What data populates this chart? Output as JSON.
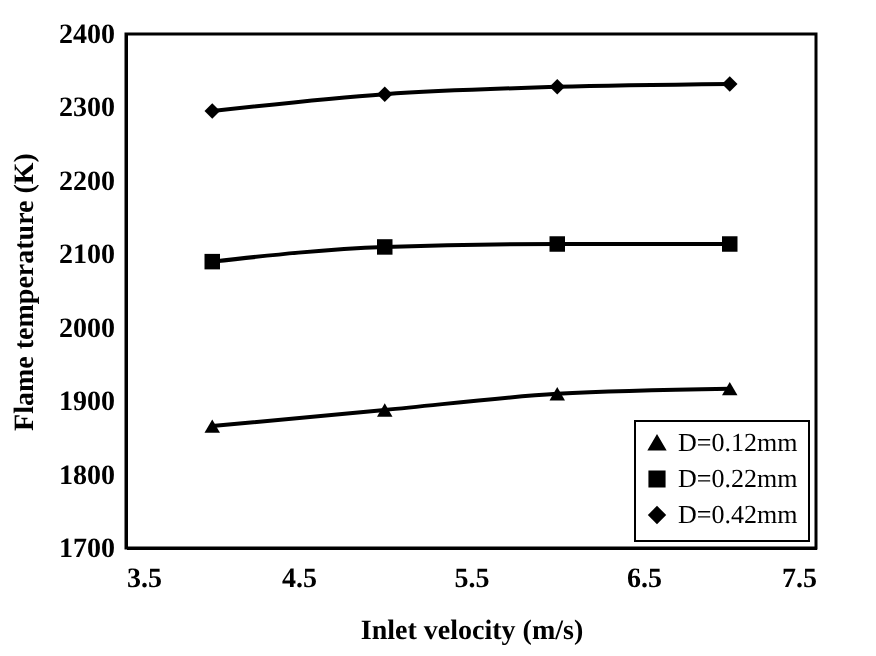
{
  "chart_data": {
    "type": "line",
    "xlabel": "Inlet velocity (m/s)",
    "ylabel": "Flame temperature (K)",
    "x": [
      4,
      5,
      6,
      7
    ],
    "series": [
      {
        "name": "D=0.12mm",
        "color": "#000000",
        "marker": "triangle",
        "values": [
          1866,
          1888,
          1910,
          1917
        ]
      },
      {
        "name": "D=0.22mm",
        "color": "#000000",
        "marker": "square",
        "values": [
          2090,
          2110,
          2114,
          2114
        ]
      },
      {
        "name": "D=0.42mm",
        "color": "#000000",
        "marker": "diamond",
        "values": [
          2295,
          2318,
          2328,
          2332
        ]
      }
    ],
    "xlim": [
      3.5,
      7.5
    ],
    "xticks": [
      3.5,
      4.5,
      5.5,
      6.5,
      7.5
    ],
    "ylim": [
      1700,
      2400
    ],
    "yticks": [
      1700,
      1800,
      1900,
      2000,
      2100,
      2200,
      2300,
      2400
    ],
    "grid": false,
    "legend": "bottom right"
  }
}
